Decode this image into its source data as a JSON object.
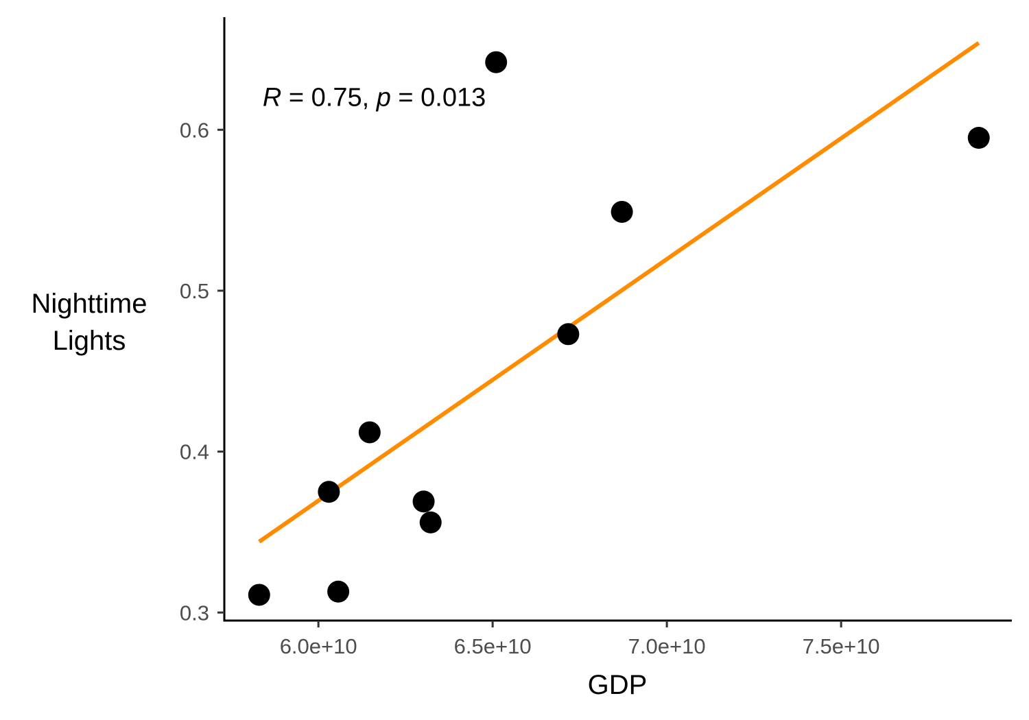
{
  "chart_data": {
    "type": "scatter",
    "xlabel": "GDP",
    "ylabel_lines": [
      "Nighttime",
      "Lights"
    ],
    "x_ticks": [
      {
        "value": 60000000000,
        "label": "6.0e+10"
      },
      {
        "value": 65000000000,
        "label": "6.5e+10"
      },
      {
        "value": 70000000000,
        "label": "7.0e+10"
      },
      {
        "value": 75000000000,
        "label": "7.5e+10"
      }
    ],
    "y_ticks": [
      {
        "value": 0.3,
        "label": "0.3"
      },
      {
        "value": 0.4,
        "label": "0.4"
      },
      {
        "value": 0.5,
        "label": "0.5"
      },
      {
        "value": 0.6,
        "label": "0.6"
      }
    ],
    "xlim": [
      57300000000,
      79900000000
    ],
    "ylim": [
      0.295,
      0.67
    ],
    "points": [
      {
        "x": 58300000000,
        "y": 0.311
      },
      {
        "x": 60300000000,
        "y": 0.375
      },
      {
        "x": 60570000000,
        "y": 0.313
      },
      {
        "x": 61470000000,
        "y": 0.412
      },
      {
        "x": 63020000000,
        "y": 0.369
      },
      {
        "x": 63220000000,
        "y": 0.356
      },
      {
        "x": 65100000000,
        "y": 0.642
      },
      {
        "x": 67170000000,
        "y": 0.473
      },
      {
        "x": 68710000000,
        "y": 0.549
      },
      {
        "x": 78950000000,
        "y": 0.595
      }
    ],
    "point_color": "#000000",
    "fit_line": {
      "color": "#FF8C00",
      "x": [
        58300000000,
        78950000000
      ],
      "y": [
        0.344,
        0.654
      ]
    },
    "annotation": {
      "R_symbol": "R",
      "R_rest": " = 0.75, ",
      "p_symbol": "p",
      "p_rest": " = 0.013",
      "x": 58400000000,
      "y": 0.62
    },
    "grid": false,
    "legend": "none"
  }
}
